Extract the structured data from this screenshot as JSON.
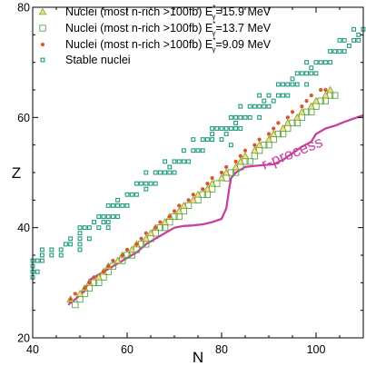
{
  "chart_data": {
    "type": "scatter",
    "xlabel": "N",
    "ylabel": "Z",
    "xlim": [
      40,
      110
    ],
    "ylim": [
      20,
      80
    ],
    "x_ticks": [
      40,
      60,
      80,
      100
    ],
    "y_ticks": [
      20,
      40,
      60,
      80
    ],
    "x_ticks_minor_step": 5,
    "y_ticks_minor_step": 5,
    "grid": false,
    "legend_position": "top-left",
    "annotation": {
      "text": "r-process",
      "x": 89,
      "y": 50.5,
      "color": "#c9409f"
    },
    "series": [
      {
        "name": "Nuclei (most n-rich >100fb) E",
        "sup": "*",
        "sub": "γ",
        "value_label": "=15.9 MeV",
        "marker": "triangle",
        "color": "#8a9a2a",
        "fill": "#e9e38a",
        "points": [
          [
            48,
            27
          ],
          [
            50,
            28
          ],
          [
            51,
            29
          ],
          [
            52,
            30
          ],
          [
            54,
            31
          ],
          [
            55,
            32
          ],
          [
            56,
            33
          ],
          [
            58,
            34
          ],
          [
            59,
            35
          ],
          [
            61,
            36
          ],
          [
            62,
            37
          ],
          [
            64,
            38
          ],
          [
            65,
            39
          ],
          [
            66,
            40
          ],
          [
            68,
            41
          ],
          [
            69,
            42
          ],
          [
            71,
            43
          ],
          [
            72,
            44
          ],
          [
            74,
            45
          ],
          [
            75,
            46
          ],
          [
            77,
            47
          ],
          [
            78,
            48
          ],
          [
            80,
            49
          ],
          [
            81,
            50
          ],
          [
            83,
            51
          ],
          [
            84,
            52
          ],
          [
            85,
            53
          ],
          [
            87,
            54
          ],
          [
            88,
            55
          ],
          [
            90,
            56
          ],
          [
            91,
            57
          ],
          [
            93,
            58
          ],
          [
            94,
            59
          ],
          [
            96,
            60
          ],
          [
            97,
            61
          ],
          [
            99,
            62
          ],
          [
            100,
            63
          ],
          [
            102,
            64
          ],
          [
            103,
            65
          ]
        ]
      },
      {
        "name": "Nuclei (most n-rich >100fb) E",
        "sup": "*",
        "sub": "γ",
        "value_label": "=13.7 MeV",
        "marker": "square",
        "color": "#55a847",
        "fill": "none",
        "points": [
          [
            49,
            26
          ],
          [
            50,
            27
          ],
          [
            51,
            28
          ],
          [
            52,
            29
          ],
          [
            53,
            30
          ],
          [
            54,
            30
          ],
          [
            55,
            31
          ],
          [
            56,
            32
          ],
          [
            57,
            33
          ],
          [
            59,
            34
          ],
          [
            60,
            35
          ],
          [
            61,
            35
          ],
          [
            62,
            36
          ],
          [
            63,
            37
          ],
          [
            64,
            37
          ],
          [
            65,
            38
          ],
          [
            66,
            39
          ],
          [
            67,
            40
          ],
          [
            68,
            40
          ],
          [
            69,
            41
          ],
          [
            70,
            42
          ],
          [
            71,
            42
          ],
          [
            72,
            43
          ],
          [
            73,
            44
          ],
          [
            75,
            45
          ],
          [
            76,
            46
          ],
          [
            77,
            46
          ],
          [
            78,
            47
          ],
          [
            79,
            48
          ],
          [
            81,
            49
          ],
          [
            82,
            50
          ],
          [
            83,
            50
          ],
          [
            84,
            51
          ],
          [
            85,
            52
          ],
          [
            86,
            52
          ],
          [
            87,
            53
          ],
          [
            88,
            54
          ],
          [
            89,
            55
          ],
          [
            90,
            55
          ],
          [
            91,
            56
          ],
          [
            92,
            57
          ],
          [
            93,
            57
          ],
          [
            94,
            58
          ],
          [
            95,
            59
          ],
          [
            96,
            59
          ],
          [
            97,
            60
          ],
          [
            98,
            61
          ],
          [
            99,
            61
          ],
          [
            100,
            62
          ],
          [
            101,
            63
          ],
          [
            102,
            63
          ],
          [
            103,
            64
          ],
          [
            104,
            64
          ]
        ]
      },
      {
        "name": "Nuclei (most n-rich >100fb) E",
        "sup": "*",
        "sub": "γ",
        "value_label": "=9.09 MeV",
        "marker": "circle",
        "color": "#d9572b",
        "fill": "#d9572b",
        "points": [
          [
            48,
            27
          ],
          [
            49,
            28
          ],
          [
            51,
            29
          ],
          [
            52,
            30
          ],
          [
            53,
            31
          ],
          [
            55,
            32
          ],
          [
            56,
            33
          ],
          [
            57,
            34
          ],
          [
            59,
            35
          ],
          [
            60,
            36
          ],
          [
            62,
            37
          ],
          [
            63,
            38
          ],
          [
            64,
            39
          ],
          [
            66,
            40
          ],
          [
            67,
            41
          ],
          [
            69,
            42
          ],
          [
            70,
            43
          ],
          [
            71,
            44
          ],
          [
            73,
            45
          ],
          [
            74,
            46
          ],
          [
            76,
            47
          ],
          [
            77,
            48
          ],
          [
            78,
            49
          ],
          [
            80,
            50
          ],
          [
            81,
            51
          ],
          [
            83,
            52
          ],
          [
            84,
            53
          ],
          [
            85,
            54
          ],
          [
            87,
            55
          ],
          [
            88,
            56
          ],
          [
            90,
            57
          ],
          [
            91,
            58
          ],
          [
            92,
            59
          ],
          [
            94,
            60
          ],
          [
            95,
            61
          ],
          [
            97,
            62
          ],
          [
            98,
            63
          ],
          [
            99,
            64
          ],
          [
            101,
            65
          ],
          [
            102,
            65
          ]
        ]
      },
      {
        "name": "Stable nuclei",
        "marker": "small-square",
        "color": "#1f9c7e",
        "fill": "none",
        "points": [
          [
            40,
            32
          ],
          [
            40,
            33
          ],
          [
            40,
            34
          ],
          [
            40,
            31
          ],
          [
            41,
            32
          ],
          [
            41,
            34
          ],
          [
            42,
            34
          ],
          [
            42,
            35
          ],
          [
            42,
            36
          ],
          [
            44,
            35
          ],
          [
            44,
            36
          ],
          [
            46,
            35
          ],
          [
            46,
            36
          ],
          [
            47,
            37
          ],
          [
            48,
            37
          ],
          [
            48,
            38
          ],
          [
            50,
            36
          ],
          [
            50,
            37
          ],
          [
            50,
            38
          ],
          [
            50,
            39
          ],
          [
            50,
            40
          ],
          [
            51,
            40
          ],
          [
            52,
            38
          ],
          [
            52,
            40
          ],
          [
            53,
            41
          ],
          [
            54,
            40
          ],
          [
            54,
            42
          ],
          [
            55,
            41
          ],
          [
            55,
            42
          ],
          [
            56,
            40
          ],
          [
            56,
            41
          ],
          [
            56,
            42
          ],
          [
            56,
            44
          ],
          [
            57,
            42
          ],
          [
            57,
            44
          ],
          [
            58,
            42
          ],
          [
            58,
            44
          ],
          [
            58,
            45
          ],
          [
            59,
            44
          ],
          [
            60,
            44
          ],
          [
            60,
            46
          ],
          [
            61,
            46
          ],
          [
            62,
            46
          ],
          [
            62,
            48
          ],
          [
            63,
            48
          ],
          [
            64,
            47
          ],
          [
            64,
            48
          ],
          [
            64,
            50
          ],
          [
            65,
            48
          ],
          [
            66,
            48
          ],
          [
            66,
            50
          ],
          [
            67,
            50
          ],
          [
            68,
            50
          ],
          [
            68,
            52
          ],
          [
            69,
            50
          ],
          [
            69,
            51
          ],
          [
            70,
            50
          ],
          [
            70,
            52
          ],
          [
            71,
            52
          ],
          [
            72,
            52
          ],
          [
            72,
            54
          ],
          [
            73,
            52
          ],
          [
            74,
            54
          ],
          [
            74,
            56
          ],
          [
            75,
            54
          ],
          [
            76,
            54
          ],
          [
            76,
            56
          ],
          [
            77,
            56
          ],
          [
            78,
            56
          ],
          [
            78,
            57
          ],
          [
            78,
            58
          ],
          [
            79,
            58
          ],
          [
            80,
            56
          ],
          [
            80,
            58
          ],
          [
            81,
            57
          ],
          [
            81,
            58
          ],
          [
            82,
            55
          ],
          [
            82,
            58
          ],
          [
            82,
            60
          ],
          [
            83,
            58
          ],
          [
            83,
            59
          ],
          [
            83,
            60
          ],
          [
            84,
            58
          ],
          [
            84,
            60
          ],
          [
            84,
            62
          ],
          [
            85,
            60
          ],
          [
            86,
            60
          ],
          [
            86,
            62
          ],
          [
            87,
            62
          ],
          [
            88,
            60
          ],
          [
            88,
            62
          ],
          [
            88,
            64
          ],
          [
            89,
            62
          ],
          [
            89,
            63
          ],
          [
            90,
            62
          ],
          [
            90,
            64
          ],
          [
            91,
            63
          ],
          [
            92,
            64
          ],
          [
            92,
            66
          ],
          [
            93,
            64
          ],
          [
            93,
            66
          ],
          [
            94,
            64
          ],
          [
            94,
            66
          ],
          [
            95,
            66
          ],
          [
            95,
            67
          ],
          [
            96,
            66
          ],
          [
            96,
            68
          ],
          [
            97,
            68
          ],
          [
            98,
            66
          ],
          [
            98,
            68
          ],
          [
            98,
            70
          ],
          [
            99,
            68
          ],
          [
            99,
            69
          ],
          [
            100,
            68
          ],
          [
            100,
            70
          ],
          [
            101,
            70
          ],
          [
            102,
            70
          ],
          [
            103,
            70
          ],
          [
            103,
            72
          ],
          [
            104,
            72
          ],
          [
            105,
            72
          ],
          [
            105,
            74
          ],
          [
            106,
            72
          ],
          [
            106,
            74
          ],
          [
            107,
            73
          ],
          [
            108,
            74
          ],
          [
            108,
            76
          ],
          [
            109,
            74
          ],
          [
            109,
            75
          ],
          [
            110,
            76
          ]
        ]
      }
    ],
    "r_process_path": [
      [
        47.5,
        26
      ],
      [
        49,
        27
      ],
      [
        51,
        28.5
      ],
      [
        52,
        30.5
      ],
      [
        54,
        31.5
      ],
      [
        56,
        32.5
      ],
      [
        58,
        33.5
      ],
      [
        60,
        34.5
      ],
      [
        62,
        35.5
      ],
      [
        64,
        37
      ],
      [
        66,
        38
      ],
      [
        68,
        39
      ],
      [
        70,
        40
      ],
      [
        72,
        40.3
      ],
      [
        74,
        40.4
      ],
      [
        76,
        40.6
      ],
      [
        78,
        41
      ],
      [
        80,
        41.6
      ],
      [
        81,
        43.5
      ],
      [
        81.6,
        47
      ],
      [
        82,
        49
      ],
      [
        83,
        50
      ],
      [
        85,
        51
      ],
      [
        88,
        51.3
      ],
      [
        91,
        51.5
      ],
      [
        93,
        52.3
      ],
      [
        95,
        53.5
      ],
      [
        97,
        54.7
      ],
      [
        99,
        55.6
      ],
      [
        100,
        57
      ],
      [
        102,
        58
      ],
      [
        104,
        58.5
      ],
      [
        106,
        59.2
      ],
      [
        108,
        59.8
      ],
      [
        110,
        60.4
      ]
    ],
    "r_process_color": "#c9409f"
  }
}
